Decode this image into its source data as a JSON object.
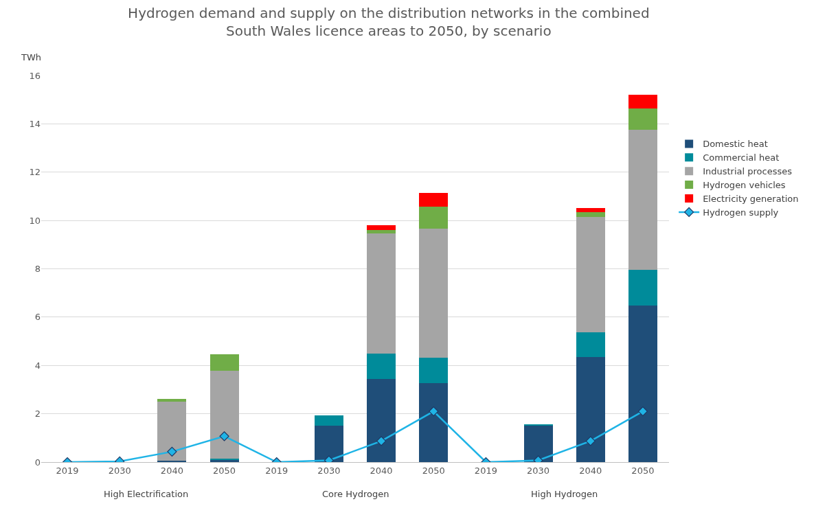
{
  "chart_data": {
    "type": "bar",
    "title": "Hydrogen demand and supply on the distribution networks in the combined South Wales licence areas to 2050, by scenario",
    "ylabel": "TWh",
    "categories": [
      "2019",
      "2030",
      "2040",
      "2050",
      "2019",
      "2030",
      "2040",
      "2050",
      "2019",
      "2030",
      "2040",
      "2050"
    ],
    "annotations": [
      "High Electrification",
      "Core Hydrogen",
      "High Hydrogen"
    ],
    "stacked": true,
    "series": [
      {
        "name": "Domestic heat",
        "color": "#1f4e79",
        "values": [
          null,
          null,
          0.07,
          0.1,
          null,
          1.5,
          3.43,
          3.27,
          null,
          1.52,
          4.35,
          6.47
        ]
      },
      {
        "name": "Commercial heat",
        "color": "#008b9a",
        "values": [
          null,
          null,
          null,
          0.05,
          null,
          0.42,
          1.06,
          1.06,
          null,
          0.03,
          1.02,
          1.48
        ]
      },
      {
        "name": "Industrial processes",
        "color": "#a5a5a5",
        "values": [
          null,
          null,
          2.42,
          3.62,
          null,
          null,
          4.98,
          5.32,
          null,
          null,
          4.78,
          5.8
        ]
      },
      {
        "name": "Hydrogen vehicles",
        "color": "#70ad47",
        "values": [
          null,
          null,
          0.12,
          0.7,
          null,
          null,
          0.13,
          0.93,
          null,
          null,
          0.2,
          0.9
        ]
      },
      {
        "name": "Electricity generation",
        "color": "#ff0000",
        "values": [
          null,
          null,
          null,
          null,
          null,
          null,
          0.2,
          0.56,
          null,
          null,
          0.17,
          0.55
        ]
      },
      {
        "name": "Hydrogen supply",
        "type": "line",
        "color": "#1fb4e6",
        "values": [
          0,
          0.03,
          0.43,
          1.07,
          0,
          0.07,
          0.87,
          2.1,
          0,
          0.07,
          0.87,
          2.1
        ]
      }
    ],
    "ylim": [
      0,
      16
    ],
    "yticks": [
      0,
      2,
      4,
      6,
      8,
      10,
      12,
      14,
      16
    ],
    "grid": "y",
    "legend": "right",
    "marker": "diamond",
    "line_style": "solid"
  }
}
